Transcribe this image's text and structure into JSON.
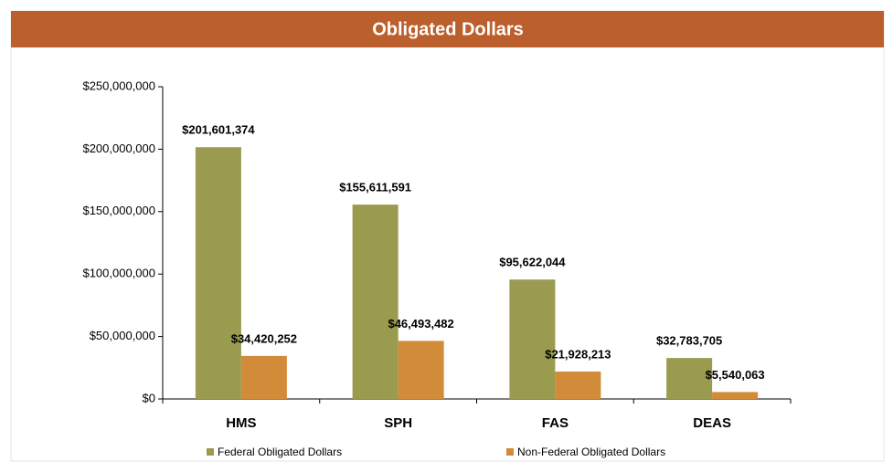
{
  "chart_data": {
    "type": "bar",
    "title": "Obligated Dollars",
    "categories": [
      "HMS",
      "SPH",
      "FAS",
      "DEAS"
    ],
    "series": [
      {
        "name": "Federal Obligated Dollars",
        "color": "#9a9b4f",
        "values": [
          201601374,
          155611591,
          95622044,
          32783705
        ],
        "value_labels": [
          "$201,601,374",
          "$155,611,591",
          "$95,622,044",
          "$32,783,705"
        ]
      },
      {
        "name": "Non-Federal Obligated Dollars",
        "color": "#d28b39",
        "values": [
          34420252,
          46493482,
          21928213,
          5540063
        ],
        "value_labels": [
          "$34,420,252",
          "$46,493,482",
          "$21,928,213",
          "$5,540,063"
        ]
      }
    ],
    "ylim": [
      0,
      250000000
    ],
    "yticks": [
      {
        "value": 0,
        "label": "$0"
      },
      {
        "value": 50000000,
        "label": "$50,000,000"
      },
      {
        "value": 100000000,
        "label": "$100,000,000"
      },
      {
        "value": 150000000,
        "label": "$150,000,000"
      },
      {
        "value": 200000000,
        "label": "$200,000,000"
      },
      {
        "value": 250000000,
        "label": "$250,000,000"
      }
    ],
    "grid": false,
    "legend": "bottom"
  }
}
